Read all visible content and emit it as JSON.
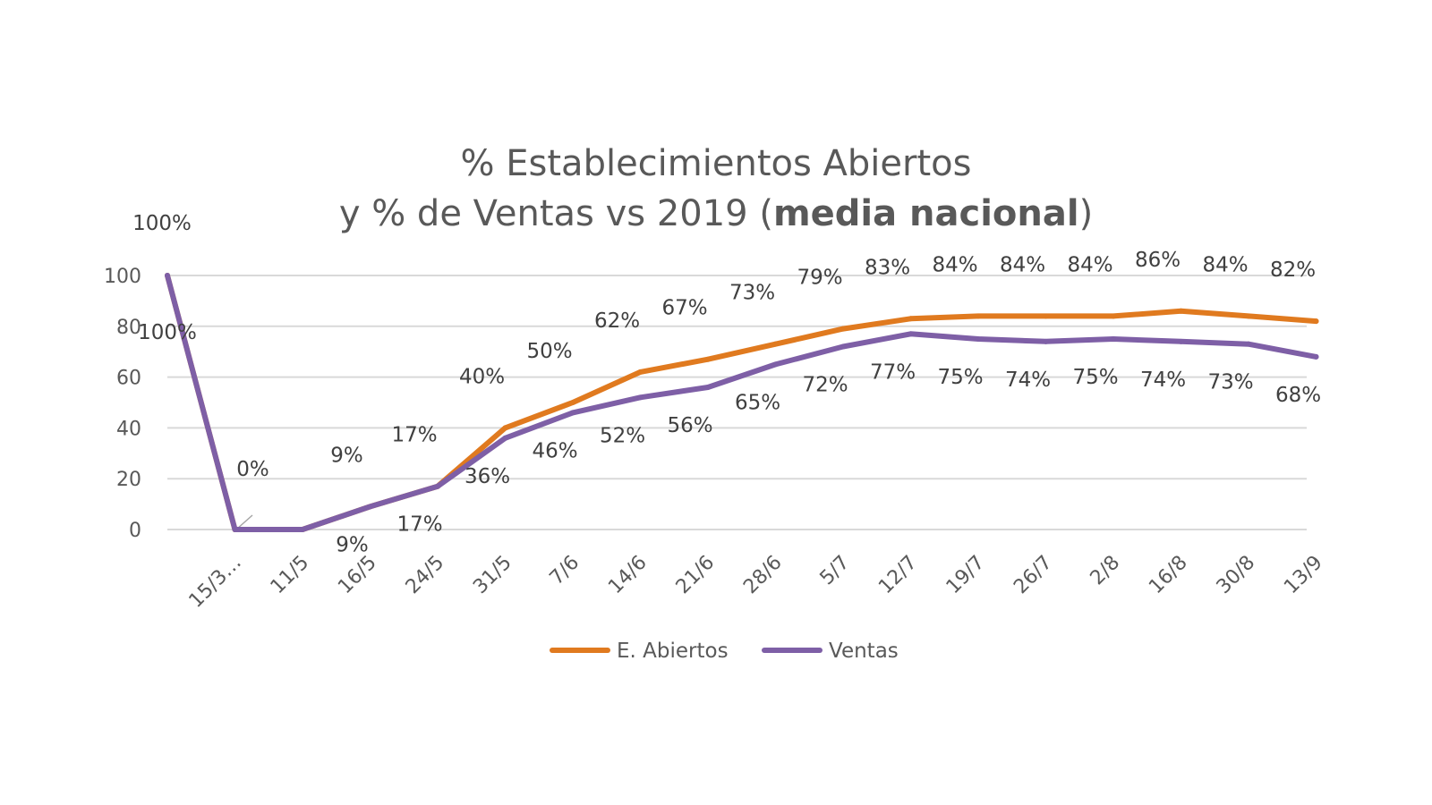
{
  "chart_data": {
    "type": "line",
    "title": {
      "line1": "% Establecimientos Abiertos",
      "line2_prefix": "y % de Ventas vs 2019 (",
      "line2_bold": "media nacional",
      "line2_suffix": ")"
    },
    "categories": [
      "",
      "15/3…",
      "11/5",
      "16/5",
      "24/5",
      "31/5",
      "7/6",
      "14/6",
      "21/6",
      "28/6",
      "5/7",
      "12/7",
      "19/7",
      "26/7",
      "2/8",
      "16/8",
      "30/8",
      "13/9"
    ],
    "yticks": [
      "0",
      "20",
      "40",
      "60",
      "80",
      "100"
    ],
    "ylim": [
      0,
      100
    ],
    "grid": true,
    "legend_position": "bottom",
    "series": [
      {
        "name": "E. Abiertos",
        "color": "#E07A1F",
        "values": [
          100,
          0,
          0,
          9,
          17,
          40,
          50,
          62,
          67,
          73,
          79,
          83,
          84,
          84,
          84,
          86,
          84,
          82
        ],
        "labels": [
          "100%",
          "0%",
          "",
          "9%",
          "17%",
          "40%",
          "50%",
          "62%",
          "67%",
          "73%",
          "79%",
          "83%",
          "84%",
          "84%",
          "84%",
          "86%",
          "84%",
          "82%"
        ]
      },
      {
        "name": "Ventas",
        "color": "#7E5FA6",
        "values": [
          100,
          0,
          0,
          9,
          17,
          36,
          46,
          52,
          56,
          65,
          72,
          77,
          75,
          74,
          75,
          74,
          73,
          68
        ],
        "labels": [
          "100%",
          "",
          "",
          "9%",
          "17%",
          "36%",
          "46%",
          "52%",
          "56%",
          "65%",
          "72%",
          "77%",
          "75%",
          "74%",
          "75%",
          "74%",
          "73%",
          "68%"
        ]
      }
    ]
  }
}
